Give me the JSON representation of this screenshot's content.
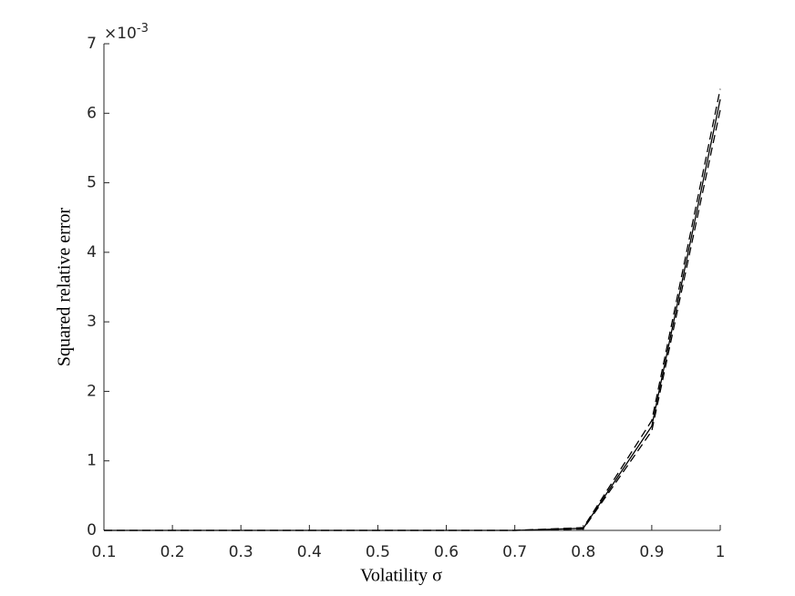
{
  "chart_data": {
    "type": "line",
    "x_label": "Volatility σ",
    "y_label": "Squared relative error",
    "y_multiplier_base": "×10",
    "y_multiplier_exponent": "-3",
    "x": [
      0.1,
      0.2,
      0.3,
      0.4,
      0.5,
      0.6,
      0.7,
      0.8,
      0.9,
      1
    ],
    "series": [
      {
        "color": "#000000",
        "linestyle": "solid",
        "values": [
          0,
          0,
          0,
          0,
          0,
          0,
          0,
          0.03,
          1.5,
          6.2
        ]
      },
      {
        "color": "#000000",
        "linestyle": "dashed",
        "values": [
          0,
          0,
          0,
          0,
          0,
          0,
          0,
          0.04,
          1.58,
          6.35
        ]
      },
      {
        "color": "#000000",
        "linestyle": "dashed",
        "values": [
          0,
          0,
          0,
          0,
          0,
          0,
          0,
          0.02,
          1.43,
          6.05
        ]
      }
    ],
    "xlim": [
      0.1,
      1
    ],
    "ylim": [
      0,
      7
    ],
    "xticks": [
      0.1,
      0.2,
      0.3,
      0.4,
      0.5,
      0.6,
      0.7,
      0.8,
      0.9,
      1
    ],
    "yticks": [
      0,
      1,
      2,
      3,
      4,
      5,
      6,
      7
    ],
    "grid": false
  }
}
